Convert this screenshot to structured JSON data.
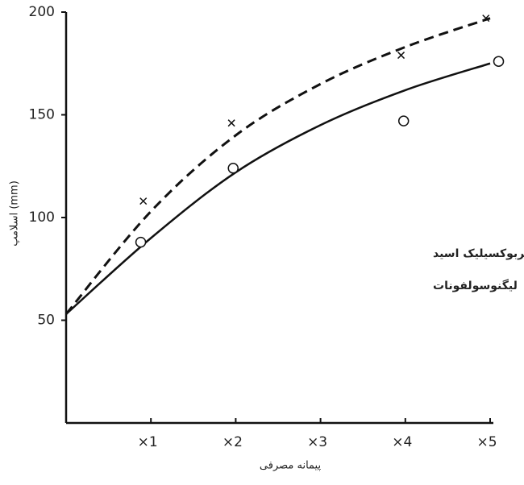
{
  "chart_data": {
    "type": "line",
    "x_label": "پیمانه مصرفی",
    "y_label": "اسلامپ (mm)",
    "annotations": [
      "اسید هیدروکسی کربوکسیلیک اسید",
      "لیگنوسولفونات"
    ],
    "xlim": [
      0,
      5
    ],
    "ylim": [
      0,
      200
    ],
    "xticks": [
      {
        "value": 1,
        "label": "×1"
      },
      {
        "value": 2,
        "label": "×2"
      },
      {
        "value": 3,
        "label": "×3"
      },
      {
        "value": 4,
        "label": "×4"
      },
      {
        "value": 5,
        "label": "×5"
      }
    ],
    "yticks": [
      50,
      100,
      150,
      200
    ],
    "series": [
      {
        "kind": "line",
        "dash": true,
        "color": "#111",
        "x": [
          0,
          1,
          2,
          3,
          4,
          5
        ],
        "values": [
          53,
          103,
          140,
          165,
          183,
          197
        ]
      },
      {
        "kind": "line",
        "dash": false,
        "color": "#111",
        "x": [
          0,
          1,
          2,
          3,
          4,
          5
        ],
        "values": [
          53,
          90,
          122,
          145,
          162,
          175
        ]
      },
      {
        "kind": "scatter",
        "marker": "x",
        "color": "#111",
        "x": [
          0.91,
          1.95,
          3.95,
          4.95
        ],
        "values": [
          108,
          146,
          179,
          197
        ]
      },
      {
        "kind": "scatter",
        "marker": "o",
        "color": "#111",
        "x": [
          0.88,
          1.97,
          3.98,
          5.1
        ],
        "values": [
          88,
          124,
          147,
          176
        ]
      }
    ]
  }
}
